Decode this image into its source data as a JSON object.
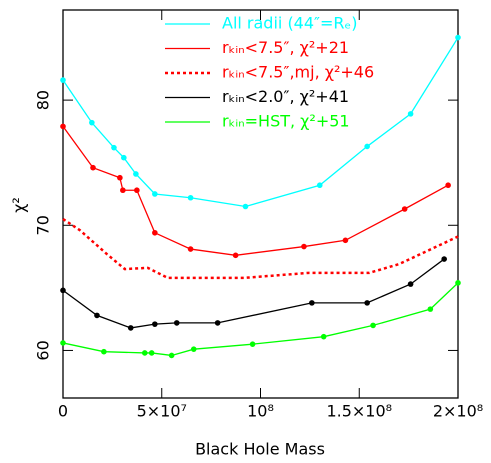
{
  "chart_data": {
    "type": "line",
    "x_label": "Black Hole Mass",
    "y_label": "χ²",
    "xlim": [
      0,
      200000000
    ],
    "ylim": [
      56.2,
      87.2
    ],
    "xticks": [
      0,
      {
        "value": 50000000,
        "label": "5×10⁷"
      },
      {
        "value": 100000000,
        "label": "10⁸"
      },
      {
        "value": 150000000,
        "label": "1.5×10⁸"
      },
      {
        "value": 200000000,
        "label": "2×10⁸"
      }
    ],
    "yticks": [
      60,
      70,
      80
    ],
    "series": [
      {
        "name": "All radii (44″=Rₑ)",
        "color": "#00ffff",
        "dashed": false,
        "markers": true,
        "x": [
          0,
          14600000,
          25800000,
          30800000,
          36900000,
          46500000,
          64600000,
          92400000,
          130000000,
          154000000,
          176000000,
          200000000
        ],
        "values": [
          81.6,
          78.2,
          76.2,
          75.4,
          74.1,
          72.5,
          72.2,
          71.5,
          73.2,
          76.3,
          78.9,
          85.0
        ]
      },
      {
        "name": "rₖᵢₙ<7.5″, χ²+21",
        "color": "#ff0000",
        "dashed": false,
        "markers": true,
        "x": [
          0,
          15200000,
          28800000,
          30300000,
          37400000,
          46500000,
          64600000,
          87400000,
          122000000,
          143000000,
          173000000,
          195000000
        ],
        "values": [
          77.9,
          74.6,
          73.8,
          72.8,
          72.8,
          69.4,
          68.1,
          67.6,
          68.3,
          68.8,
          71.3,
          73.2
        ]
      },
      {
        "name": "rₖᵢₙ<7.5″,mj, χ²+46",
        "color": "#ff0000",
        "dashed": true,
        "markers": false,
        "x": [
          0,
          8600000,
          22200000,
          31300000,
          42900000,
          53000000,
          91900000,
          124700000,
          155100000,
          170200000,
          200000000
        ],
        "values": [
          70.5,
          69.6,
          67.7,
          66.5,
          66.6,
          65.8,
          65.8,
          66.2,
          66.2,
          66.9,
          69.1
        ]
      },
      {
        "name": "rₖᵢₙ<2.0″, χ²+41",
        "color": "#000000",
        "dashed": false,
        "markers": true,
        "x": [
          0,
          17200000,
          34300000,
          46500000,
          57600000,
          78300000,
          126000000,
          154000000,
          176000000,
          193000000
        ],
        "values": [
          64.8,
          62.8,
          61.8,
          62.1,
          62.2,
          62.2,
          63.8,
          63.8,
          65.3,
          67.3
        ]
      },
      {
        "name": "rₖᵢₙ=HST, χ²+51",
        "color": "#00ff00",
        "dashed": false,
        "markers": true,
        "x": [
          0,
          20700000,
          41400000,
          44900000,
          55000000,
          66200000,
          96000000,
          132000000,
          157000000,
          186000000,
          200000000
        ],
        "values": [
          60.6,
          59.9,
          59.8,
          59.8,
          59.6,
          60.1,
          60.5,
          61.1,
          62.0,
          63.3,
          65.4
        ]
      }
    ]
  }
}
